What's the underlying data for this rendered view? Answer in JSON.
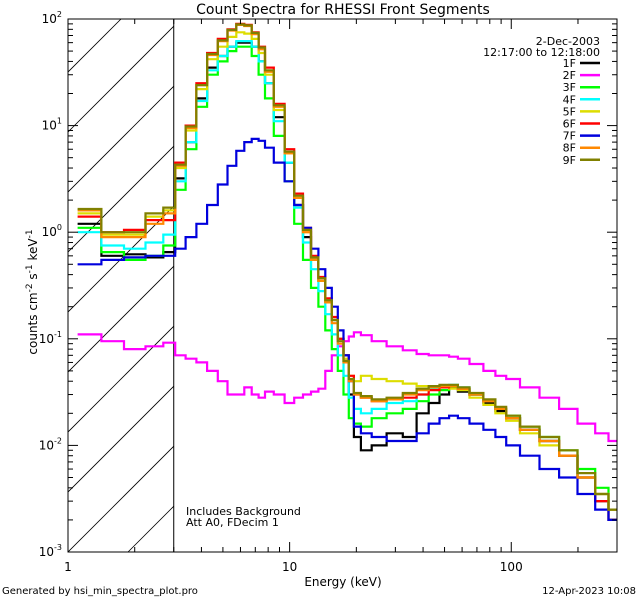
{
  "chart_data": {
    "type": "line",
    "title": "Count Spectra for RHESSI Front Segments",
    "xlabel": "Energy (keV)",
    "ylabel_parts": [
      "counts cm",
      "-2",
      " s",
      "-1",
      " keV",
      "-1"
    ],
    "x_scale": "log",
    "y_scale": "log",
    "xlim": [
      1,
      300
    ],
    "ylim": [
      0.001,
      100
    ],
    "x_ticks": [
      {
        "value": 1,
        "label": "1"
      },
      {
        "value": 10,
        "label": "10"
      },
      {
        "value": 100,
        "label": "100"
      }
    ],
    "y_ticks": [
      {
        "value": 0.001,
        "label": "10",
        "exp": "-3"
      },
      {
        "value": 0.01,
        "label": "10",
        "exp": "-2"
      },
      {
        "value": 0.1,
        "label": "10",
        "exp": "-1"
      },
      {
        "value": 1,
        "label": "10",
        "exp": "0"
      },
      {
        "value": 10,
        "label": "10",
        "exp": "1"
      },
      {
        "value": 100,
        "label": "10",
        "exp": "2"
      }
    ],
    "attenuator_region": {
      "xmin": 1,
      "xmax": 3
    },
    "date": "2-Dec-2003",
    "time_range": "12:17:00 to 12:18:00",
    "notes": [
      "Includes Background",
      "Att A0, FDecim 1"
    ],
    "series": [
      {
        "name": "1F",
        "color": "#000000",
        "x": [
          1.25,
          1.6,
          2.0,
          2.5,
          2.9,
          3.2,
          3.6,
          4.0,
          4.5,
          5.0,
          5.5,
          6.0,
          6.5,
          7.0,
          7.5,
          8.0,
          9.0,
          10.0,
          11.0,
          12.0,
          13.0,
          14.0,
          15.0,
          16.0,
          17.0,
          18.0,
          19.0,
          20.0,
          22.0,
          25.0,
          30.0,
          35.0,
          40.0,
          45.0,
          50.0,
          55.0,
          60.0,
          70.0,
          80.0,
          90.0,
          100.0,
          120.0,
          150.0,
          180.0,
          220.0,
          260.0,
          290.0
        ],
        "y": [
          1.2,
          0.6,
          0.62,
          0.58,
          0.65,
          3.2,
          7.0,
          18.0,
          35.0,
          45.0,
          55.0,
          60.0,
          60.0,
          55.0,
          40.0,
          25.0,
          12.0,
          4.5,
          1.8,
          0.9,
          0.55,
          0.35,
          0.22,
          0.15,
          0.1,
          0.07,
          0.03,
          0.012,
          0.009,
          0.01,
          0.013,
          0.012,
          0.02,
          0.025,
          0.03,
          0.035,
          0.032,
          0.03,
          0.025,
          0.021,
          0.018,
          0.014,
          0.011,
          0.008,
          0.005,
          0.003,
          0.002
        ]
      },
      {
        "name": "2F",
        "color": "#ff00ff",
        "x": [
          1.25,
          1.6,
          2.0,
          2.5,
          2.9,
          3.2,
          3.6,
          4.0,
          4.5,
          5.0,
          5.5,
          6.0,
          6.5,
          7.0,
          7.5,
          8.0,
          9.0,
          10.0,
          11.0,
          12.0,
          13.0,
          14.0,
          15.0,
          16.0,
          17.0,
          18.0,
          19.0,
          20.0,
          22.0,
          25.0,
          30.0,
          35.0,
          40.0,
          45.0,
          50.0,
          55.0,
          60.0,
          70.0,
          80.0,
          90.0,
          100.0,
          120.0,
          150.0,
          180.0,
          220.0,
          260.0,
          290.0
        ],
        "y": [
          0.11,
          0.095,
          0.08,
          0.085,
          0.092,
          0.07,
          0.065,
          0.06,
          0.05,
          0.04,
          0.03,
          0.03,
          0.035,
          0.03,
          0.028,
          0.032,
          0.03,
          0.025,
          0.028,
          0.03,
          0.032,
          0.034,
          0.05,
          0.07,
          0.085,
          0.095,
          0.105,
          0.115,
          0.108,
          0.095,
          0.085,
          0.078,
          0.072,
          0.07,
          0.07,
          0.068,
          0.065,
          0.058,
          0.05,
          0.045,
          0.042,
          0.035,
          0.028,
          0.022,
          0.016,
          0.013,
          0.011
        ]
      },
      {
        "name": "3F",
        "color": "#00ff00",
        "x": [
          1.25,
          1.6,
          2.0,
          2.5,
          2.9,
          3.2,
          3.6,
          4.0,
          4.5,
          5.0,
          5.5,
          6.0,
          6.5,
          7.0,
          7.5,
          8.0,
          9.0,
          10.0,
          11.0,
          12.0,
          13.0,
          14.0,
          15.0,
          16.0,
          17.0,
          18.0,
          19.0,
          20.0,
          22.0,
          25.0,
          30.0,
          35.0,
          40.0,
          45.0,
          50.0,
          55.0,
          60.0,
          70.0,
          80.0,
          90.0,
          100.0,
          120.0,
          150.0,
          180.0,
          220.0,
          260.0,
          290.0
        ],
        "y": [
          1.1,
          0.65,
          0.55,
          0.6,
          0.75,
          2.5,
          6.0,
          15.0,
          30.0,
          40.0,
          50.0,
          55.0,
          55.0,
          45.0,
          30.0,
          18.0,
          8.0,
          3.0,
          1.2,
          0.55,
          0.3,
          0.2,
          0.12,
          0.08,
          0.05,
          0.03,
          0.018,
          0.016,
          0.015,
          0.018,
          0.02,
          0.022,
          0.026,
          0.03,
          0.033,
          0.035,
          0.034,
          0.03,
          0.026,
          0.022,
          0.019,
          0.015,
          0.012,
          0.009,
          0.006,
          0.004,
          0.0025
        ]
      },
      {
        "name": "4F",
        "color": "#00ffff",
        "x": [
          1.25,
          1.6,
          2.0,
          2.5,
          2.9,
          3.2,
          3.6,
          4.0,
          4.5,
          5.0,
          5.5,
          6.0,
          6.5,
          7.0,
          7.5,
          8.0,
          9.0,
          10.0,
          11.0,
          12.0,
          13.0,
          14.0,
          15.0,
          16.0,
          17.0,
          18.0,
          19.0,
          20.0,
          22.0,
          25.0,
          30.0,
          35.0,
          40.0,
          45.0,
          50.0,
          55.0,
          60.0,
          70.0,
          80.0,
          90.0,
          100.0,
          120.0,
          150.0,
          180.0,
          220.0,
          260.0,
          290.0
        ],
        "y": [
          1.0,
          0.75,
          0.7,
          0.8,
          0.95,
          3.0,
          7.0,
          17.0,
          33.0,
          45.0,
          55.0,
          62.0,
          62.0,
          55.0,
          40.0,
          25.0,
          11.0,
          4.5,
          1.7,
          0.8,
          0.45,
          0.28,
          0.17,
          0.11,
          0.07,
          0.045,
          0.028,
          0.022,
          0.02,
          0.022,
          0.025,
          0.026,
          0.03,
          0.034,
          0.036,
          0.037,
          0.035,
          0.03,
          0.026,
          0.022,
          0.018,
          0.014,
          0.011,
          0.008,
          0.005,
          0.0035,
          0.0025
        ]
      },
      {
        "name": "5F",
        "color": "#dddd00",
        "x": [
          1.25,
          1.6,
          2.0,
          2.5,
          2.9,
          3.2,
          3.6,
          4.0,
          4.5,
          5.0,
          5.5,
          6.0,
          6.5,
          7.0,
          7.5,
          8.0,
          9.0,
          10.0,
          11.0,
          12.0,
          13.0,
          14.0,
          15.0,
          16.0,
          17.0,
          18.0,
          19.0,
          20.0,
          22.0,
          25.0,
          30.0,
          35.0,
          40.0,
          45.0,
          50.0,
          55.0,
          60.0,
          70.0,
          80.0,
          90.0,
          100.0,
          120.0,
          150.0,
          180.0,
          220.0,
          260.0,
          290.0
        ],
        "y": [
          1.5,
          0.95,
          0.95,
          1.4,
          1.6,
          4.0,
          9.0,
          22.0,
          42.0,
          55.0,
          68.0,
          75.0,
          73.0,
          65.0,
          48.0,
          30.0,
          14.0,
          5.5,
          2.1,
          1.0,
          0.55,
          0.35,
          0.22,
          0.15,
          0.1,
          0.065,
          0.045,
          0.04,
          0.045,
          0.042,
          0.04,
          0.038,
          0.036,
          0.036,
          0.035,
          0.034,
          0.033,
          0.028,
          0.024,
          0.02,
          0.017,
          0.013,
          0.01,
          0.008,
          0.005,
          0.0035,
          0.0025
        ]
      },
      {
        "name": "6F",
        "color": "#ff0000",
        "x": [
          1.25,
          1.6,
          2.0,
          2.5,
          2.9,
          3.2,
          3.6,
          4.0,
          4.5,
          5.0,
          5.5,
          6.0,
          6.5,
          7.0,
          7.5,
          8.0,
          9.0,
          10.0,
          11.0,
          12.0,
          13.0,
          14.0,
          15.0,
          16.0,
          17.0,
          18.0,
          19.0,
          20.0,
          22.0,
          25.0,
          30.0,
          35.0,
          40.0,
          45.0,
          50.0,
          55.0,
          60.0,
          70.0,
          80.0,
          90.0,
          100.0,
          120.0,
          150.0,
          180.0,
          220.0,
          260.0,
          290.0
        ],
        "y": [
          1.4,
          1.0,
          1.05,
          1.3,
          1.3,
          4.5,
          10.0,
          25.0,
          48.0,
          65.0,
          80.0,
          90.0,
          88.0,
          75.0,
          55.0,
          35.0,
          16.0,
          6.0,
          2.3,
          1.1,
          0.6,
          0.38,
          0.24,
          0.16,
          0.1,
          0.07,
          0.045,
          0.03,
          0.028,
          0.026,
          0.027,
          0.028,
          0.03,
          0.033,
          0.035,
          0.036,
          0.034,
          0.03,
          0.026,
          0.022,
          0.018,
          0.014,
          0.011,
          0.008,
          0.005,
          0.003,
          0.002
        ]
      },
      {
        "name": "7F",
        "color": "#0000dd",
        "x": [
          1.25,
          1.6,
          2.0,
          2.5,
          2.9,
          3.2,
          3.6,
          4.0,
          4.5,
          5.0,
          5.5,
          6.0,
          6.5,
          7.0,
          7.5,
          8.0,
          9.0,
          10.0,
          11.0,
          12.0,
          13.0,
          14.0,
          15.0,
          16.0,
          17.0,
          18.0,
          19.0,
          20.0,
          22.0,
          25.0,
          30.0,
          35.0,
          40.0,
          45.0,
          50.0,
          55.0,
          60.0,
          70.0,
          80.0,
          90.0,
          100.0,
          120.0,
          150.0,
          180.0,
          220.0,
          260.0,
          290.0
        ],
        "y": [
          0.5,
          0.55,
          0.58,
          0.6,
          0.6,
          0.7,
          0.9,
          1.2,
          1.8,
          2.8,
          4.2,
          5.8,
          7.0,
          7.5,
          7.2,
          6.2,
          4.5,
          3.0,
          1.8,
          1.1,
          0.7,
          0.45,
          0.3,
          0.2,
          0.12,
          0.07,
          0.04,
          0.015,
          0.013,
          0.012,
          0.011,
          0.011,
          0.013,
          0.016,
          0.018,
          0.019,
          0.018,
          0.016,
          0.014,
          0.012,
          0.01,
          0.008,
          0.006,
          0.005,
          0.0035,
          0.0025,
          0.002
        ]
      },
      {
        "name": "8F",
        "color": "#ff8800",
        "x": [
          1.25,
          1.6,
          2.0,
          2.5,
          2.9,
          3.2,
          3.6,
          4.0,
          4.5,
          5.0,
          5.5,
          6.0,
          6.5,
          7.0,
          7.5,
          8.0,
          9.0,
          10.0,
          11.0,
          12.0,
          13.0,
          14.0,
          15.0,
          16.0,
          17.0,
          18.0,
          19.0,
          20.0,
          22.0,
          25.0,
          30.0,
          35.0,
          40.0,
          45.0,
          50.0,
          55.0,
          60.0,
          70.0,
          80.0,
          90.0,
          100.0,
          120.0,
          150.0,
          180.0,
          220.0,
          260.0,
          290.0
        ],
        "y": [
          1.6,
          0.9,
          0.9,
          1.2,
          1.5,
          4.2,
          9.5,
          24.0,
          46.0,
          62.0,
          78.0,
          88.0,
          86.0,
          72.0,
          52.0,
          32.0,
          15.0,
          5.5,
          2.1,
          1.0,
          0.55,
          0.35,
          0.22,
          0.14,
          0.09,
          0.06,
          0.04,
          0.03,
          0.028,
          0.026,
          0.027,
          0.03,
          0.033,
          0.035,
          0.036,
          0.036,
          0.034,
          0.03,
          0.026,
          0.022,
          0.018,
          0.014,
          0.011,
          0.008,
          0.005,
          0.0035,
          0.0025
        ]
      },
      {
        "name": "9F",
        "color": "#808000",
        "x": [
          1.25,
          1.6,
          2.0,
          2.5,
          2.9,
          3.2,
          3.6,
          4.0,
          4.5,
          5.0,
          5.5,
          6.0,
          6.5,
          7.0,
          7.5,
          8.0,
          9.0,
          10.0,
          11.0,
          12.0,
          13.0,
          14.0,
          15.0,
          16.0,
          17.0,
          18.0,
          19.0,
          20.0,
          22.0,
          25.0,
          30.0,
          35.0,
          40.0,
          45.0,
          50.0,
          55.0,
          60.0,
          70.0,
          80.0,
          90.0,
          100.0,
          120.0,
          150.0,
          180.0,
          220.0,
          260.0,
          290.0
        ],
        "y": [
          1.65,
          1.0,
          1.0,
          1.5,
          1.7,
          4.3,
          9.8,
          24.0,
          47.0,
          63.0,
          79.0,
          89.0,
          87.0,
          74.0,
          54.0,
          33.0,
          15.5,
          5.7,
          2.2,
          1.05,
          0.58,
          0.37,
          0.23,
          0.15,
          0.095,
          0.062,
          0.042,
          0.031,
          0.029,
          0.027,
          0.028,
          0.031,
          0.034,
          0.036,
          0.037,
          0.037,
          0.035,
          0.031,
          0.027,
          0.023,
          0.019,
          0.015,
          0.012,
          0.009,
          0.0055,
          0.0035,
          0.0025
        ]
      }
    ]
  },
  "footer": {
    "left": "Generated by hsi_min_spectra_plot.pro",
    "right": "12-Apr-2023 10:08"
  }
}
